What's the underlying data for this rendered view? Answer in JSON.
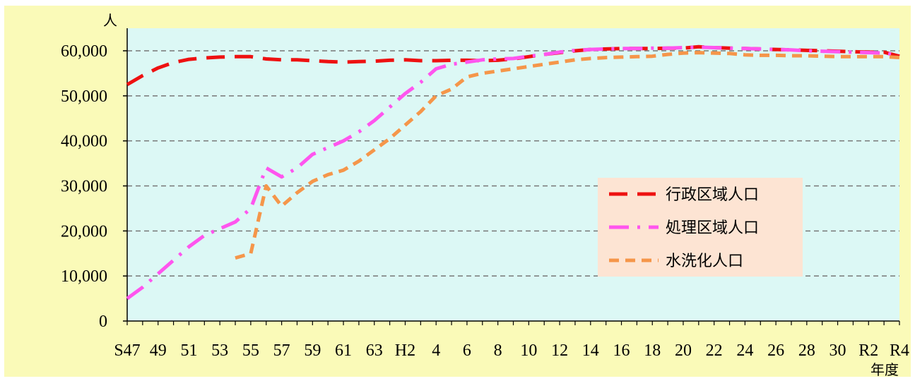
{
  "chart_data": {
    "type": "line",
    "ylabel": "人",
    "xlabel": "年度",
    "ylim": [
      0,
      60000
    ],
    "y_ticks": [
      "0",
      "10,000",
      "20,000",
      "30,000",
      "40,000",
      "50,000",
      "60,000"
    ],
    "x_tick_labels": [
      "S47",
      "49",
      "51",
      "53",
      "55",
      "57",
      "59",
      "61",
      "63",
      "H2",
      "4",
      "6",
      "8",
      "10",
      "12",
      "14",
      "16",
      "18",
      "20",
      "22",
      "24",
      "26",
      "28",
      "30",
      "R2",
      "R4"
    ],
    "grid": "horizontal dashed",
    "legend_position": "right",
    "x": [
      "S47",
      "S48",
      "S49",
      "S50",
      "S51",
      "S52",
      "S53",
      "S54",
      "S55",
      "S56",
      "S57",
      "S58",
      "S59",
      "S60",
      "S61",
      "S62",
      "S63",
      "H1",
      "H2",
      "H3",
      "H4",
      "H5",
      "H6",
      "H7",
      "H8",
      "H9",
      "H10",
      "H11",
      "H12",
      "H13",
      "H14",
      "H15",
      "H16",
      "H17",
      "H18",
      "H19",
      "H20",
      "H21",
      "H22",
      "H23",
      "H24",
      "H25",
      "H26",
      "H27",
      "H28",
      "H29",
      "H30",
      "R1",
      "R2",
      "R3",
      "R4"
    ],
    "series": [
      {
        "name": "行政区域人口",
        "color": "#ee1111",
        "style": "long-dash",
        "values": [
          52500,
          54500,
          56200,
          57400,
          58100,
          58400,
          58600,
          58700,
          58700,
          58200,
          58000,
          58000,
          57800,
          57600,
          57500,
          57600,
          57700,
          57900,
          58000,
          57800,
          57800,
          57900,
          57900,
          57800,
          57900,
          58200,
          58700,
          59200,
          59600,
          60000,
          60300,
          60400,
          60500,
          60500,
          60500,
          60600,
          60600,
          60900,
          60700,
          60600,
          60500,
          60400,
          60300,
          60200,
          60100,
          60000,
          59900,
          59800,
          59700,
          59700,
          58800
        ]
      },
      {
        "name": "処理区域人口",
        "color": "#ff55ee",
        "style": "dash-dot",
        "values": [
          5000,
          7500,
          10500,
          13500,
          16500,
          19000,
          20500,
          22000,
          25000,
          34000,
          32000,
          34000,
          37000,
          38500,
          40000,
          42000,
          44500,
          47500,
          50500,
          53000,
          56000,
          57000,
          57500,
          58000,
          58200,
          58300,
          58800,
          59200,
          59700,
          60100,
          60300,
          60400,
          60500,
          60500,
          60600,
          60600,
          60700,
          60800,
          60700,
          60600,
          60500,
          60400,
          60300,
          60200,
          60000,
          59900,
          59800,
          59700,
          59600,
          59500,
          59000
        ]
      },
      {
        "name": "水洗化人口",
        "color": "#f5964a",
        "style": "short-dash",
        "values": [
          null,
          null,
          null,
          null,
          null,
          null,
          null,
          14000,
          15000,
          30000,
          25500,
          28500,
          31000,
          32500,
          33500,
          35500,
          38000,
          40500,
          43500,
          46500,
          50000,
          51500,
          54200,
          55000,
          55500,
          56000,
          56500,
          57000,
          57500,
          58000,
          58300,
          58500,
          58600,
          58700,
          58800,
          59200,
          59500,
          59600,
          59500,
          59400,
          59100,
          59000,
          59000,
          58900,
          58900,
          58800,
          58700,
          58700,
          58700,
          58700,
          58500
        ]
      }
    ]
  }
}
